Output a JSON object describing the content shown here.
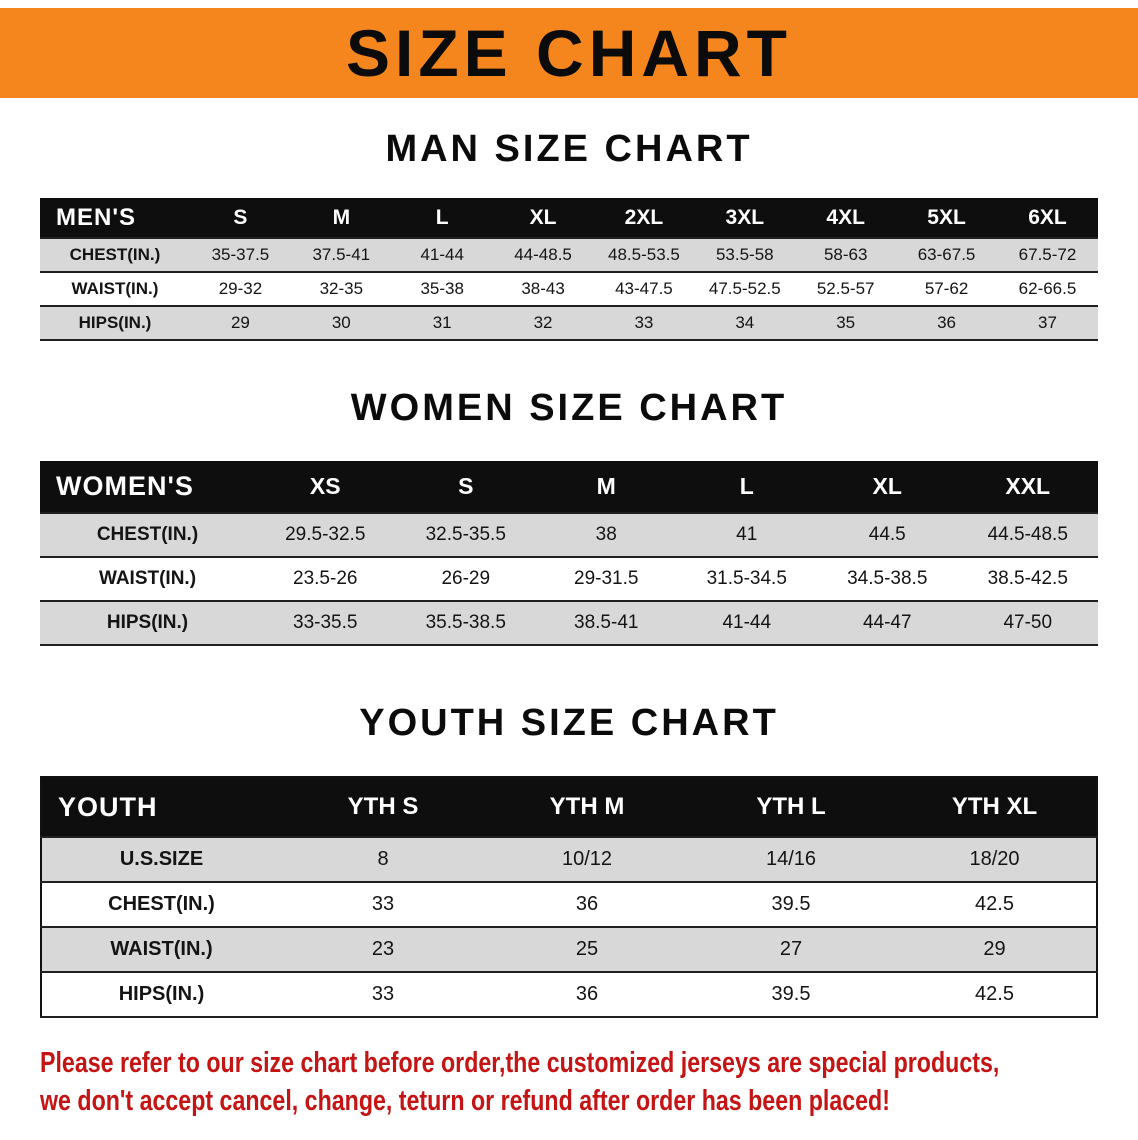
{
  "banner": {
    "title": "SIZE CHART"
  },
  "colors": {
    "banner_bg": "#f5861d",
    "header_bar": "#0e0e0e",
    "row_stripe": "#d8d8d8",
    "notice_text": "#c41414"
  },
  "sections": [
    {
      "heading": "MAN SIZE CHART",
      "table": {
        "corner": "MEN'S",
        "columns": [
          "S",
          "M",
          "L",
          "XL",
          "2XL",
          "3XL",
          "4XL",
          "5XL",
          "6XL"
        ],
        "rows": [
          {
            "label": "CHEST(IN.)",
            "values": [
              "35-37.5",
              "37.5-41",
              "41-44",
              "44-48.5",
              "48.5-53.5",
              "53.5-58",
              "58-63",
              "63-67.5",
              "67.5-72"
            ]
          },
          {
            "label": "WAIST(IN.)",
            "values": [
              "29-32",
              "32-35",
              "35-38",
              "38-43",
              "43-47.5",
              "47.5-52.5",
              "52.5-57",
              "57-62",
              "62-66.5"
            ]
          },
          {
            "label": "HIPS(IN.)",
            "values": [
              "29",
              "30",
              "31",
              "32",
              "33",
              "34",
              "35",
              "36",
              "37"
            ]
          }
        ]
      }
    },
    {
      "heading": "WOMEN SIZE CHART",
      "table": {
        "corner": "WOMEN'S",
        "columns": [
          "XS",
          "S",
          "M",
          "L",
          "XL",
          "XXL"
        ],
        "rows": [
          {
            "label": "CHEST(IN.)",
            "values": [
              "29.5-32.5",
              "32.5-35.5",
              "38",
              "41",
              "44.5",
              "44.5-48.5"
            ]
          },
          {
            "label": "WAIST(IN.)",
            "values": [
              "23.5-26",
              "26-29",
              "29-31.5",
              "31.5-34.5",
              "34.5-38.5",
              "38.5-42.5"
            ]
          },
          {
            "label": "HIPS(IN.)",
            "values": [
              "33-35.5",
              "35.5-38.5",
              "38.5-41",
              "41-44",
              "44-47",
              "47-50"
            ]
          }
        ]
      }
    },
    {
      "heading": "YOUTH SIZE CHART",
      "table": {
        "corner": "YOUTH",
        "columns": [
          "YTH S",
          "YTH M",
          "YTH L",
          "YTH XL"
        ],
        "rows": [
          {
            "label": "U.S.SIZE",
            "values": [
              "8",
              "10/12",
              "14/16",
              "18/20"
            ]
          },
          {
            "label": "CHEST(IN.)",
            "values": [
              "33",
              "36",
              "39.5",
              "42.5"
            ]
          },
          {
            "label": "WAIST(IN.)",
            "values": [
              "23",
              "25",
              "27",
              "29"
            ]
          },
          {
            "label": "HIPS(IN.)",
            "values": [
              "33",
              "36",
              "39.5",
              "42.5"
            ]
          }
        ]
      }
    }
  ],
  "footer": {
    "lines": [
      "Please refer to our size chart before order,the customized jerseys are special products,",
      "we don't accept cancel, change, teturn or refund after order has been placed!"
    ]
  }
}
